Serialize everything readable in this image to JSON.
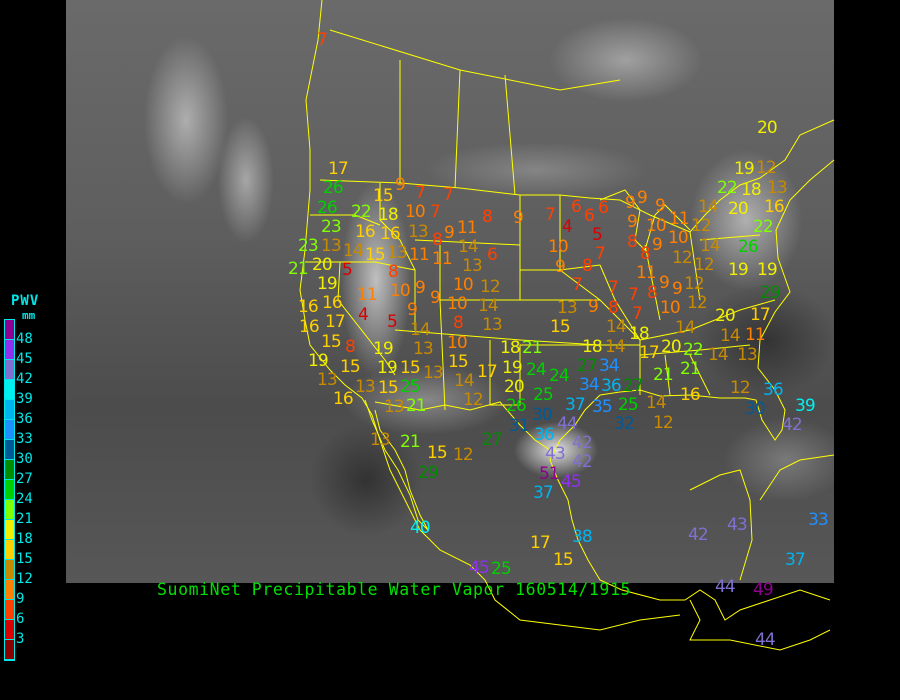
{
  "title": "SuomiNet Precipitable Water Vapor 160514/1915",
  "legend": {
    "title": "PWV",
    "unit": "mm",
    "labels": [
      "48",
      "45",
      "42",
      "39",
      "36",
      "33",
      "30",
      "27",
      "24",
      "21",
      "18",
      "15",
      "12",
      "9",
      "6",
      "3"
    ],
    "colors_top_to_bottom": [
      "#900090",
      "#9030f0",
      "#8070d0",
      "#00f0f0",
      "#00b4f0",
      "#1e90ff",
      "#005a96",
      "#008c00",
      "#00d000",
      "#80ff00",
      "#f0f000",
      "#ffd000",
      "#c88a00",
      "#ff8000",
      "#ff4000",
      "#d80000",
      "#8b0000"
    ]
  },
  "colors": {
    "boundary": "#ffff00",
    "title": "#00e000",
    "legend_text": "#00e8e8",
    "outside": "#000000"
  },
  "stations": [
    7,
    17,
    26,
    9,
    7,
    7,
    15,
    18,
    10,
    7,
    8,
    9,
    26,
    23,
    22,
    16,
    16,
    13,
    9,
    8,
    11,
    14,
    6,
    23,
    13,
    14,
    15,
    13,
    11,
    11,
    21,
    20,
    5,
    8,
    13,
    10,
    9,
    10,
    12,
    19,
    11,
    9,
    16,
    16,
    10,
    14,
    16,
    17,
    4,
    5,
    9,
    8,
    13,
    15,
    14,
    13,
    10,
    19,
    8,
    13,
    15,
    19,
    19,
    15,
    13,
    15,
    14,
    17,
    18,
    21,
    19,
    20,
    16,
    13,
    15,
    25,
    12,
    13,
    21,
    26,
    7,
    6,
    4,
    6,
    6,
    5,
    9,
    9,
    9,
    9,
    10,
    7,
    9,
    8,
    8,
    9,
    10,
    11,
    10,
    12,
    14,
    12,
    8,
    12,
    11,
    12,
    9,
    7,
    7,
    7,
    8,
    9,
    12,
    10,
    13,
    9,
    8,
    7,
    15,
    14,
    18,
    14,
    14,
    20,
    20,
    17,
    14,
    11,
    14,
    13,
    18,
    17,
    22,
    21,
    21,
    24,
    24,
    27,
    34,
    36,
    27,
    25,
    37,
    34,
    35,
    25,
    14,
    12,
    16,
    12,
    36,
    30,
    30,
    31,
    44,
    32,
    19,
    12,
    22,
    18,
    13,
    14,
    20,
    16,
    22,
    26,
    19,
    19,
    29,
    20,
    13,
    21,
    15,
    12,
    29,
    27,
    36,
    43,
    42,
    42,
    51,
    45,
    37,
    40,
    17,
    38,
    45,
    25,
    15,
    39,
    42,
    33,
    42,
    43,
    37,
    44,
    49,
    44
  ]
}
